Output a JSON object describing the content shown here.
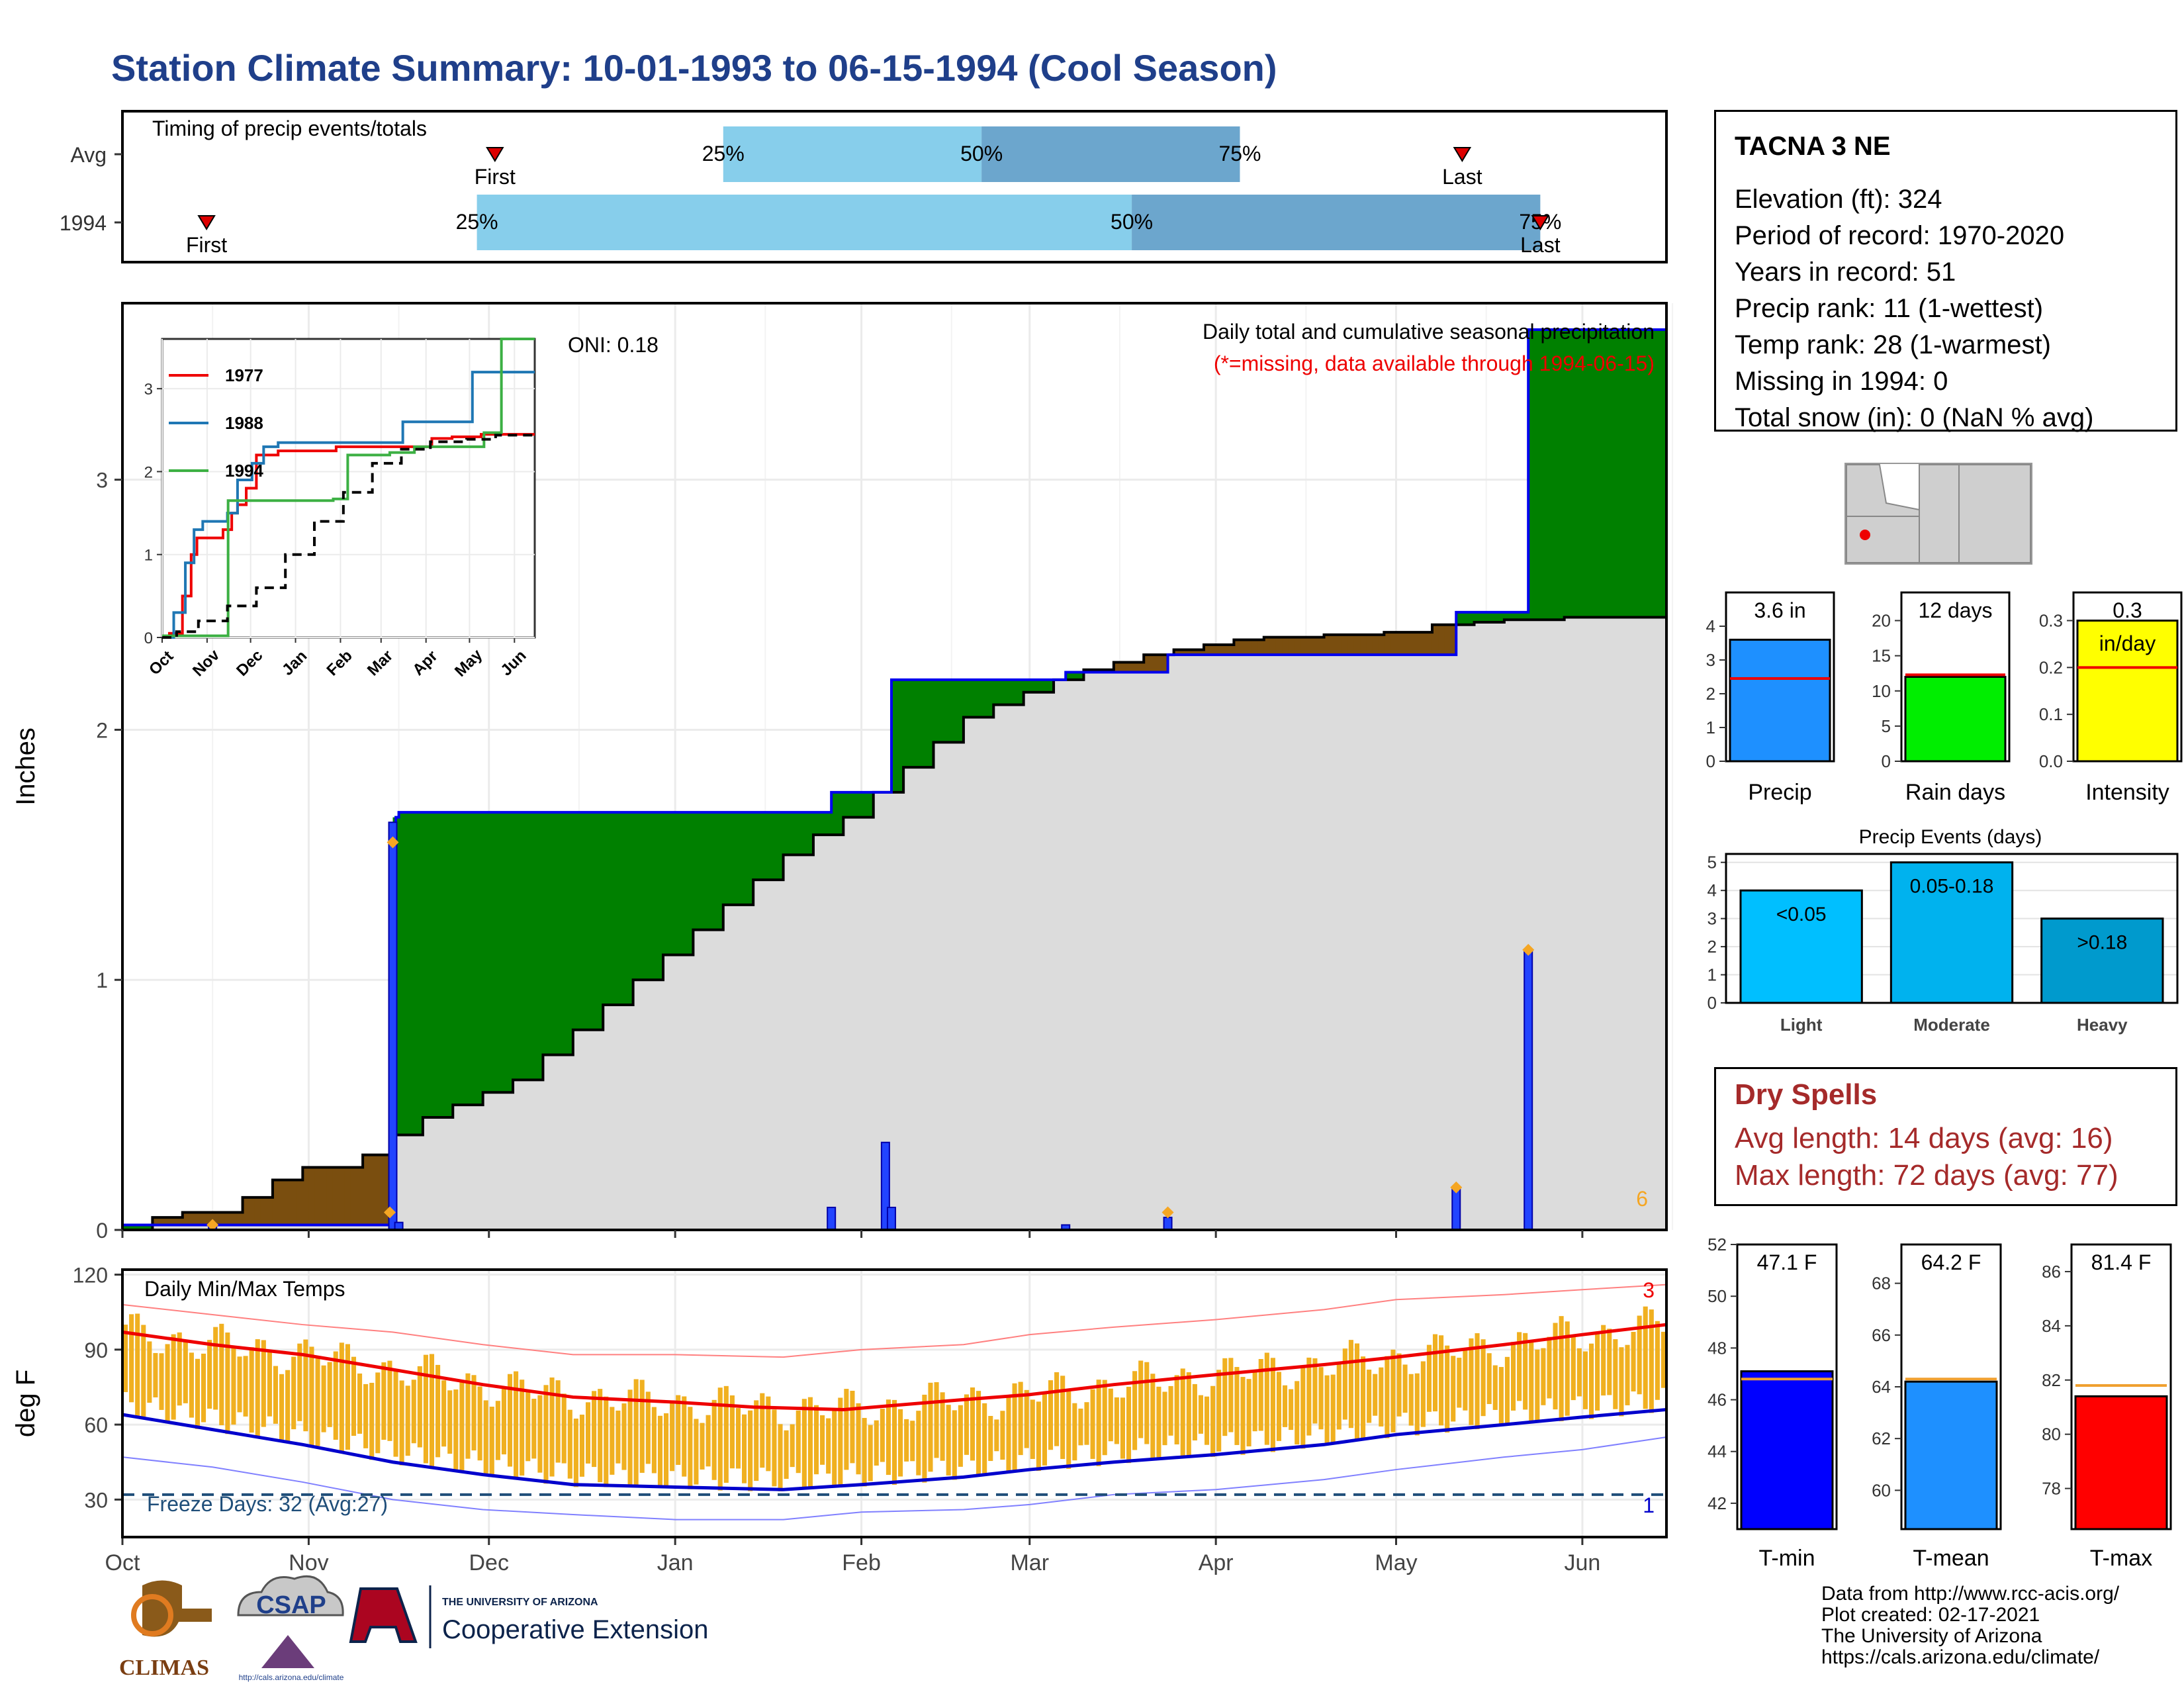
{
  "title": "Station Climate Summary: 10-01-1993 to 06-15-1994 (Cool Season)",
  "colors": {
    "title": "#1f3f8a",
    "cum_precip_line": "#0000ee",
    "wet_fill": "#008000",
    "dry_fill": "#7a4e0f",
    "normal_fill": "#dcdcdc",
    "temp_bar": "#f0b020",
    "tmax_avg": "#ee0000",
    "tmin_avg": "#0000cc",
    "precip_bar": "#1e90ff",
    "rain_days_bar": "#00ee00",
    "intensity_bar": "#ffff00",
    "light_bar": "#00bfff",
    "moderate_bar": "#00b2ee",
    "heavy_bar": "#009acd",
    "tmin_bar": "#0000ff",
    "tmean_bar": "#1e90ff",
    "tmax_bar": "#ff0000",
    "dry_spell_text": "#a52a2a"
  },
  "timing": {
    "label": "Timing of precip events/totals",
    "rows": [
      {
        "name": "Avg",
        "first_label": "First",
        "last_label": "Last",
        "first_day": 62,
        "last_day": 223,
        "q25_day": 100,
        "q50_day": 143,
        "q75_day": 186
      },
      {
        "name": "1994",
        "first_label": "First",
        "last_label": "Last",
        "first_day": 14,
        "last_day": 236,
        "q25_day": 59,
        "q50_day": 168,
        "q75_day": 236
      }
    ],
    "q25_label": "25%",
    "q50_label": "50%",
    "q75_label": "75%"
  },
  "chart_data": [
    {
      "type": "area",
      "id": "precip",
      "title": "Daily total and cumulative seasonal precipitation",
      "subtitle": "(*=missing, data available through 1994-06-15)",
      "oni_label": "ONI: 0.18",
      "ylabel": "Inches",
      "ylim": [
        0,
        3.6
      ],
      "yticks": [
        0,
        1,
        2,
        3
      ],
      "xlim_days": [
        0,
        257
      ],
      "x_month_labels": [
        "Oct",
        "Nov",
        "Dec",
        "Jan",
        "Feb",
        "Mar",
        "Apr",
        "May",
        "Jun"
      ],
      "x_month_days": [
        0,
        31,
        61,
        92,
        123,
        151,
        182,
        212,
        243
      ],
      "corner_count": "6",
      "normal_cumulative": [
        [
          0,
          0
        ],
        [
          5,
          0.05
        ],
        [
          10,
          0.07
        ],
        [
          20,
          0.13
        ],
        [
          25,
          0.2
        ],
        [
          30,
          0.25
        ],
        [
          40,
          0.3
        ],
        [
          45,
          0.38
        ],
        [
          50,
          0.45
        ],
        [
          55,
          0.5
        ],
        [
          60,
          0.55
        ],
        [
          65,
          0.6
        ],
        [
          70,
          0.7
        ],
        [
          75,
          0.8
        ],
        [
          80,
          0.9
        ],
        [
          85,
          1.0
        ],
        [
          90,
          1.1
        ],
        [
          95,
          1.2
        ],
        [
          100,
          1.3
        ],
        [
          105,
          1.4
        ],
        [
          110,
          1.5
        ],
        [
          115,
          1.58
        ],
        [
          120,
          1.65
        ],
        [
          125,
          1.75
        ],
        [
          130,
          1.85
        ],
        [
          135,
          1.95
        ],
        [
          140,
          2.05
        ],
        [
          145,
          2.1
        ],
        [
          150,
          2.15
        ],
        [
          155,
          2.2
        ],
        [
          160,
          2.24
        ],
        [
          165,
          2.27
        ],
        [
          170,
          2.3
        ],
        [
          175,
          2.32
        ],
        [
          180,
          2.34
        ],
        [
          185,
          2.36
        ],
        [
          190,
          2.37
        ],
        [
          200,
          2.38
        ],
        [
          210,
          2.39
        ],
        [
          218,
          2.42
        ],
        [
          225,
          2.43
        ],
        [
          230,
          2.44
        ],
        [
          240,
          2.45
        ],
        [
          257,
          2.45
        ]
      ],
      "observed_cumulative": [
        [
          0,
          0.02
        ],
        [
          15,
          0.02
        ],
        [
          45,
          0.02
        ],
        [
          45.5,
          1.65
        ],
        [
          46,
          1.67
        ],
        [
          118,
          1.67
        ],
        [
          118,
          1.75
        ],
        [
          128,
          1.75
        ],
        [
          128,
          2.2
        ],
        [
          157,
          2.2
        ],
        [
          157,
          2.23
        ],
        [
          174,
          2.23
        ],
        [
          174,
          2.3
        ],
        [
          222,
          2.3
        ],
        [
          222,
          2.47
        ],
        [
          234,
          2.47
        ],
        [
          234,
          3.6
        ],
        [
          257,
          3.6
        ]
      ],
      "daily_precip": [
        [
          15,
          0.02
        ],
        [
          45,
          1.63
        ],
        [
          46,
          0.03
        ],
        [
          118,
          0.09
        ],
        [
          127,
          0.35
        ],
        [
          128,
          0.09
        ],
        [
          157,
          0.02
        ],
        [
          174,
          0.05
        ],
        [
          222,
          0.17
        ],
        [
          234,
          1.12
        ]
      ],
      "event_markers_days": [
        15,
        44.5,
        45,
        174,
        222,
        234
      ],
      "event_markers_values": [
        0.02,
        0.07,
        1.55,
        0.07,
        0.17,
        1.12
      ]
    },
    {
      "type": "line",
      "id": "precip-inset",
      "ylim": [
        0,
        3.6
      ],
      "yticks": [
        0,
        1,
        2,
        3
      ],
      "x_month_labels": [
        "Oct",
        "Nov",
        "Dec",
        "Jan",
        "Feb",
        "Mar",
        "Apr",
        "May",
        "Jun"
      ],
      "x_month_days": [
        0,
        31,
        61,
        92,
        123,
        151,
        182,
        212,
        243
      ],
      "series": [
        {
          "name": "1977",
          "color": "#ee0000",
          "points": [
            [
              0,
              0
            ],
            [
              5,
              0.05
            ],
            [
              14,
              0.5
            ],
            [
              20,
              1.0
            ],
            [
              24,
              1.2
            ],
            [
              40,
              1.2
            ],
            [
              42,
              1.3
            ],
            [
              48,
              1.5
            ],
            [
              52,
              1.6
            ],
            [
              58,
              1.8
            ],
            [
              65,
              2.2
            ],
            [
              80,
              2.25
            ],
            [
              120,
              2.3
            ],
            [
              170,
              2.3
            ],
            [
              186,
              2.4
            ],
            [
              200,
              2.42
            ],
            [
              220,
              2.45
            ],
            [
              240,
              2.45
            ],
            [
              257,
              2.45
            ]
          ]
        },
        {
          "name": "1988",
          "color": "#1f77b4",
          "points": [
            [
              0,
              0
            ],
            [
              8,
              0.3
            ],
            [
              16,
              0.9
            ],
            [
              22,
              1.3
            ],
            [
              28,
              1.4
            ],
            [
              45,
              1.5
            ],
            [
              52,
              1.9
            ],
            [
              62,
              2.1
            ],
            [
              70,
              2.3
            ],
            [
              80,
              2.35
            ],
            [
              120,
              2.35
            ],
            [
              160,
              2.35
            ],
            [
              166,
              2.6
            ],
            [
              210,
              2.6
            ],
            [
              214,
              3.2
            ],
            [
              257,
              3.2
            ]
          ]
        },
        {
          "name": "1994",
          "color": "#3cb043",
          "points": [
            [
              0,
              0.02
            ],
            [
              45,
              0.02
            ],
            [
              45.5,
              1.65
            ],
            [
              118,
              1.67
            ],
            [
              128,
              2.2
            ],
            [
              157,
              2.23
            ],
            [
              174,
              2.3
            ],
            [
              222,
              2.47
            ],
            [
              234,
              3.6
            ],
            [
              257,
              3.6
            ]
          ]
        },
        {
          "name": "",
          "color": "#000000",
          "dash": true,
          "points": [
            [
              0,
              0
            ],
            [
              10,
              0.07
            ],
            [
              25,
              0.2
            ],
            [
              45,
              0.38
            ],
            [
              65,
              0.6
            ],
            [
              85,
              1.0
            ],
            [
              105,
              1.4
            ],
            [
              125,
              1.75
            ],
            [
              145,
              2.1
            ],
            [
              165,
              2.27
            ],
            [
              185,
              2.36
            ],
            [
              210,
              2.39
            ],
            [
              230,
              2.44
            ],
            [
              257,
              2.45
            ]
          ]
        }
      ]
    },
    {
      "type": "bar",
      "id": "daily-temps",
      "title": "Daily Min/Max Temps",
      "ylabel": "deg F",
      "ylim": [
        15,
        122
      ],
      "yticks": [
        30,
        60,
        90,
        120
      ],
      "xlim_days": [
        0,
        257
      ],
      "x_month_labels": [
        "Oct",
        "Nov",
        "Dec",
        "Jan",
        "Feb",
        "Mar",
        "Apr",
        "May",
        "Jun"
      ],
      "x_month_days": [
        0,
        31,
        61,
        92,
        123,
        151,
        182,
        212,
        243
      ],
      "freeze_label": "Freeze Days: 32 (Avg:27)",
      "freeze_line": 32,
      "record_high_count": "3",
      "record_low_count": "1",
      "avg_tmax": [
        [
          0,
          97
        ],
        [
          15,
          92
        ],
        [
          30,
          88
        ],
        [
          45,
          82
        ],
        [
          60,
          76
        ],
        [
          75,
          71
        ],
        [
          92,
          69
        ],
        [
          105,
          67
        ],
        [
          120,
          66
        ],
        [
          140,
          70
        ],
        [
          151,
          72
        ],
        [
          165,
          76
        ],
        [
          182,
          80
        ],
        [
          200,
          84
        ],
        [
          212,
          87
        ],
        [
          230,
          92
        ],
        [
          243,
          96
        ],
        [
          257,
          100
        ]
      ],
      "avg_tmin": [
        [
          0,
          64
        ],
        [
          15,
          58
        ],
        [
          30,
          52
        ],
        [
          45,
          45
        ],
        [
          60,
          40
        ],
        [
          75,
          36
        ],
        [
          92,
          35
        ],
        [
          110,
          34
        ],
        [
          123,
          36
        ],
        [
          140,
          39
        ],
        [
          151,
          42
        ],
        [
          165,
          45
        ],
        [
          182,
          48
        ],
        [
          200,
          52
        ],
        [
          212,
          56
        ],
        [
          230,
          60
        ],
        [
          243,
          63
        ],
        [
          257,
          66
        ]
      ],
      "record_high_env": [
        [
          0,
          108
        ],
        [
          15,
          104
        ],
        [
          30,
          100
        ],
        [
          45,
          97
        ],
        [
          60,
          92
        ],
        [
          75,
          88
        ],
        [
          92,
          88
        ],
        [
          110,
          87
        ],
        [
          123,
          90
        ],
        [
          140,
          92
        ],
        [
          151,
          96
        ],
        [
          165,
          99
        ],
        [
          182,
          102
        ],
        [
          200,
          106
        ],
        [
          212,
          110
        ],
        [
          230,
          112
        ],
        [
          243,
          114
        ],
        [
          257,
          116
        ]
      ],
      "record_low_env": [
        [
          0,
          47
        ],
        [
          15,
          43
        ],
        [
          30,
          37
        ],
        [
          45,
          30
        ],
        [
          60,
          26
        ],
        [
          75,
          24
        ],
        [
          92,
          22
        ],
        [
          110,
          22
        ],
        [
          123,
          25
        ],
        [
          140,
          26
        ],
        [
          151,
          28
        ],
        [
          165,
          32
        ],
        [
          182,
          34
        ],
        [
          200,
          38
        ],
        [
          212,
          42
        ],
        [
          230,
          47
        ],
        [
          243,
          50
        ],
        [
          257,
          55
        ]
      ]
    },
    {
      "type": "bar",
      "id": "precip-total",
      "categories": [
        "Precip"
      ],
      "values": [
        3.6
      ],
      "avg": 2.45,
      "value_label": "3.6 in",
      "ylim": [
        0,
        5
      ],
      "yticks": [
        0,
        1,
        2,
        3,
        4
      ]
    },
    {
      "type": "bar",
      "id": "rain-days",
      "categories": [
        "Rain days"
      ],
      "values": [
        12
      ],
      "avg": 12.3,
      "value_label": "12 days",
      "ylim": [
        0,
        24
      ],
      "yticks": [
        0,
        5,
        10,
        15,
        20
      ]
    },
    {
      "type": "bar",
      "id": "intensity",
      "categories": [
        "Intensity"
      ],
      "values": [
        0.3
      ],
      "avg": 0.2,
      "value_label": "0.3",
      "unit_label": "in/day",
      "ylim": [
        0,
        0.36
      ],
      "yticks": [
        0.0,
        0.1,
        0.2,
        0.3
      ]
    },
    {
      "type": "bar",
      "id": "precip-events",
      "title": "Precip Events (days)",
      "categories": [
        "Light",
        "Moderate",
        "Heavy"
      ],
      "values": [
        4,
        5,
        3
      ],
      "bar_labels": [
        "<0.05",
        "0.05-0.18",
        ">0.18"
      ],
      "ylim": [
        0,
        5.3
      ],
      "yticks": [
        0,
        1,
        2,
        3,
        4,
        5
      ]
    },
    {
      "type": "bar",
      "id": "tmin",
      "categories": [
        "T-min"
      ],
      "values": [
        47.1
      ],
      "avg": 46.8,
      "value_label": "47.1 F",
      "ylim": [
        41,
        52
      ],
      "yticks": [
        42,
        44,
        46,
        48,
        50,
        52
      ]
    },
    {
      "type": "bar",
      "id": "tmean",
      "categories": [
        "T-mean"
      ],
      "values": [
        64.2
      ],
      "avg": 64.3,
      "value_label": "64.2 F",
      "ylim": [
        58.5,
        69.5
      ],
      "yticks": [
        60,
        62,
        64,
        66,
        68
      ]
    },
    {
      "type": "bar",
      "id": "tmax",
      "categories": [
        "T-max"
      ],
      "values": [
        81.4
      ],
      "avg": 81.8,
      "value_label": "81.4 F",
      "ylim": [
        76.5,
        87
      ],
      "yticks": [
        78,
        80,
        82,
        84,
        86
      ]
    }
  ],
  "station": {
    "name": "TACNA 3 NE",
    "lines": [
      "Elevation (ft): 324",
      "Period of record: 1970-2020",
      "Years in record: 51",
      "Precip rank: 11 (1-wettest)",
      "Temp rank: 28 (1-warmest)",
      "Missing in 1994: 0",
      "Total snow (in): 0 (NaN % avg)"
    ]
  },
  "dry_spells": {
    "title": "Dry Spells",
    "avg_line": "Avg length: 14 days (avg: 16)",
    "max_line": "Max length: 72 days (avg: 77)"
  },
  "logos": {
    "climas": "CLIMAS",
    "csap": "CSAP",
    "csap_url": "http://cals.arizona.edu/climate",
    "ua_small": "THE UNIVERSITY OF ARIZONA",
    "ua_ext": "Cooperative Extension"
  },
  "credits": [
    "Data from http://www.rcc-acis.org/",
    "Plot created: 02-17-2021",
    "The University of Arizona",
    "https://cals.arizona.edu/climate/"
  ]
}
